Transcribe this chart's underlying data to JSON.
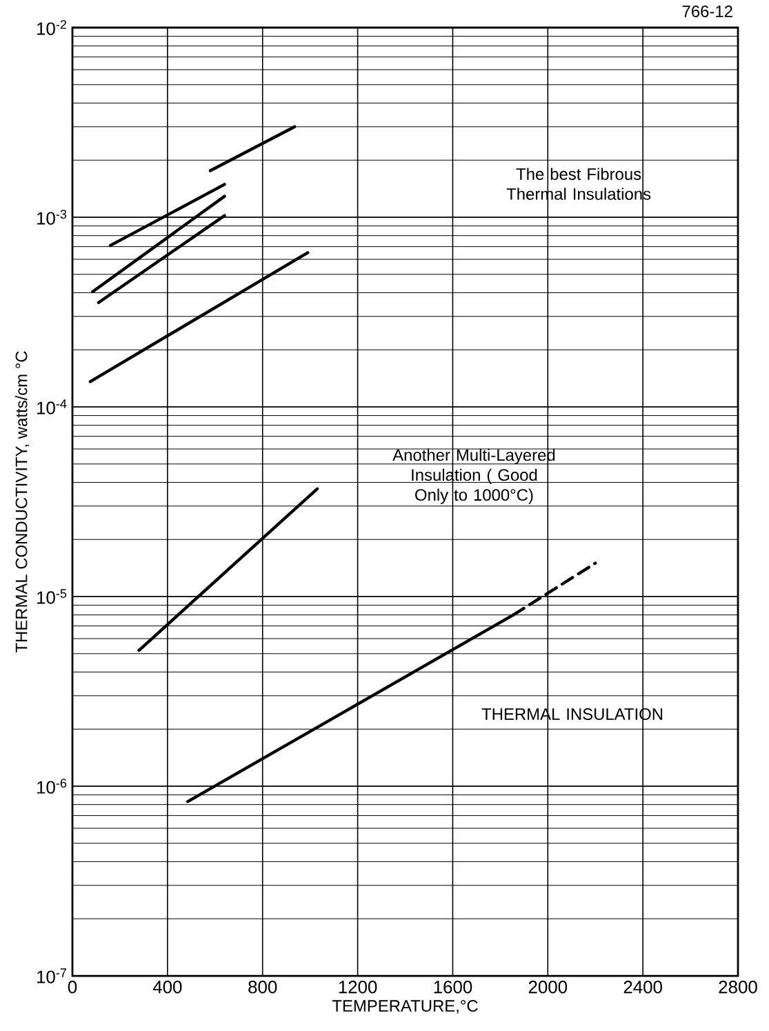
{
  "chart_data": {
    "type": "line",
    "xlabel": "TEMPERATURE,°C",
    "ylabel": "THERMAL CONDUCTIVITY, watts/cm °C",
    "annotations": [
      "The best Fibrous Thermal Insulations",
      "Another Multi-Layered Insulation ( Good Only to 1000°C)",
      "THERMAL INSULATION",
      "766-12"
    ],
    "series": [
      {
        "color": "#000000",
        "x": [
          580,
          935
        ],
        "values": [
          0.00176,
          0.003
        ]
      },
      {
        "color": "#000000",
        "x": [
          160,
          640
        ],
        "values": [
          0.00071,
          0.00149
        ]
      },
      {
        "color": "#000000",
        "x": [
          85,
          640
        ],
        "values": [
          0.000405,
          0.00129
        ]
      },
      {
        "color": "#000000",
        "x": [
          110,
          640
        ],
        "values": [
          0.000355,
          0.00102
        ]
      },
      {
        "color": "#000000",
        "x": [
          75,
          990
        ],
        "values": [
          0.000136,
          0.00065
        ]
      },
      {
        "color": "#000000",
        "x": [
          280,
          1030
        ],
        "values": [
          5.2e-06,
          3.7e-05
        ]
      },
      {
        "color": "#000000",
        "x": [
          485,
          1855
        ],
        "values": [
          8.3e-07,
          8e-06
        ]
      },
      {
        "color": "#000000",
        "x": [
          1855,
          2200
        ],
        "values": [
          8e-06,
          1.5e-05
        ],
        "line_style": "dashed"
      }
    ],
    "xlim": [
      0,
      2800
    ],
    "ylim": [
      1e-07,
      0.01
    ],
    "xticks": [
      0,
      400,
      800,
      1200,
      1600,
      2000,
      2400,
      2800
    ],
    "yticks": [
      {
        "value": 1e-07,
        "label": "10$^{-7}$"
      },
      {
        "value": 1e-06,
        "label": "10$^{-6}$"
      },
      {
        "value": 1e-05,
        "label": "10$^{-5}$"
      },
      {
        "value": 0.0001,
        "label": "10$^{-4}$"
      },
      {
        "value": 0.001,
        "label": "10$^{-3}$"
      },
      {
        "value": 0.01,
        "label": "10$^{-2}$"
      }
    ],
    "log": "y",
    "grid": true,
    "marker": "none",
    "line_style": "solid"
  }
}
